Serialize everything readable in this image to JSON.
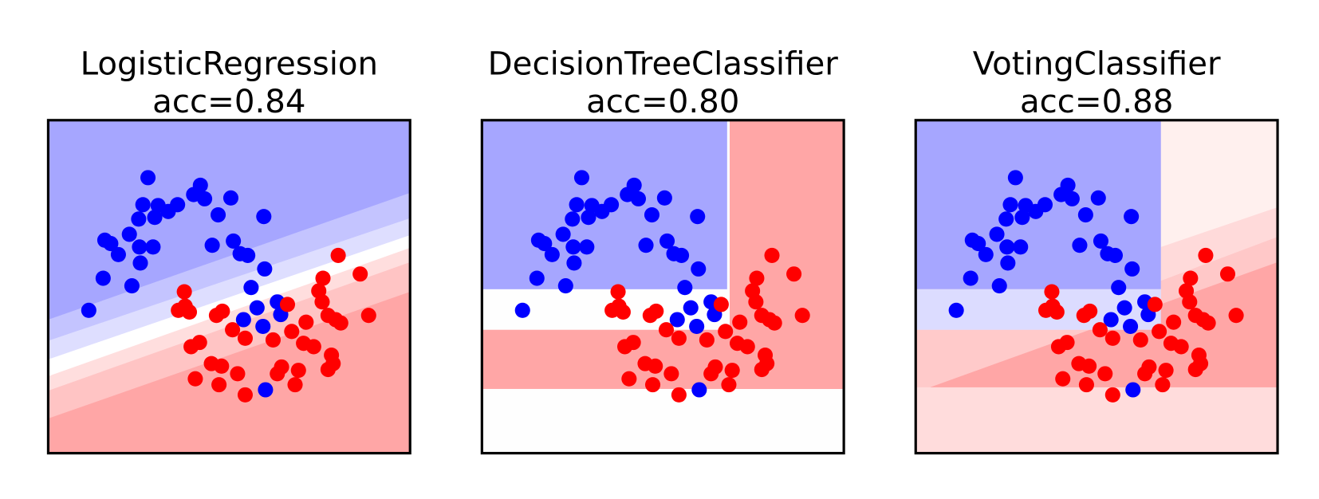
{
  "chart_data": [
    {
      "type": "scatter",
      "title": "LogisticRegression",
      "subtitle": "acc=0.84",
      "xlim": [
        0,
        4.28
      ],
      "ylim": [
        0,
        3.94
      ],
      "series": [
        {
          "color": "#0000ff",
          "x": [
            1.18,
            1.8,
            1.72,
            1.85,
            1.12,
            1.3,
            1.53,
            2.16,
            1.42,
            1.26,
            1.07,
            2.01,
            2.55,
            0.67,
            0.74,
            0.96,
            1.08,
            1.24,
            1.94,
            2.19,
            2.27,
            2.36,
            0.83,
            1.09,
            2.56,
            0.65,
            0.99,
            2.4,
            2.71,
            2.47,
            2.75,
            0.48,
            2.31,
            2.54,
            2.57
          ],
          "values": [
            3.26,
            3.17,
            3.06,
            3.01,
            2.94,
            2.93,
            2.94,
            3.02,
            2.86,
            2.79,
            2.77,
            2.82,
            2.8,
            2.52,
            2.48,
            2.59,
            2.44,
            2.44,
            2.46,
            2.51,
            2.36,
            2.34,
            2.35,
            2.25,
            2.18,
            2.07,
            1.98,
            1.96,
            1.79,
            1.72,
            1.64,
            1.69,
            1.58,
            1.5,
            0.75
          ]
        },
        {
          "color": "#ff0000",
          "x": [
            3.43,
            3.69,
            3.25,
            1.61,
            3.2,
            3.24,
            1.62,
            1.54,
            1.67,
            2.06,
            1.99,
            2.83,
            3.31,
            3.4,
            3.46,
            3.79,
            3.05,
            2.88,
            2.18,
            1.69,
            1.79,
            2.33,
            2.66,
            3.02,
            3.14,
            3.35,
            1.93,
            2.05,
            2.24,
            2.76,
            2.71,
            2.96,
            3.37,
            3.31,
            1.74,
            2.02,
            2.92,
            2.33
          ],
          "values": [
            2.34,
            2.12,
            2.07,
            1.91,
            1.92,
            1.79,
            1.74,
            1.69,
            1.67,
            1.68,
            1.63,
            1.76,
            1.63,
            1.58,
            1.54,
            1.63,
            1.55,
            1.44,
            1.46,
            1.26,
            1.31,
            1.36,
            1.34,
            1.3,
            1.26,
            1.16,
            1.06,
            1.03,
            0.94,
            1.02,
            0.94,
            0.98,
            1.06,
            0.99,
            0.88,
            0.81,
            0.81,
            0.69
          ]
        }
      ]
    },
    {
      "type": "scatter",
      "title": "DecisionTreeClassifier",
      "subtitle": "acc=0.80",
      "xlim": [
        0,
        4.28
      ],
      "ylim": [
        0,
        3.94
      ],
      "series": [
        {
          "color": "#0000ff",
          "x": [
            1.18,
            1.8,
            1.72,
            1.85,
            1.12,
            1.3,
            1.53,
            2.16,
            1.42,
            1.26,
            1.07,
            2.01,
            2.55,
            0.67,
            0.74,
            0.96,
            1.08,
            1.24,
            1.94,
            2.19,
            2.27,
            2.36,
            0.83,
            1.09,
            2.56,
            0.65,
            0.99,
            2.4,
            2.71,
            2.47,
            2.75,
            0.48,
            2.31,
            2.54,
            2.57
          ],
          "values": [
            3.26,
            3.17,
            3.06,
            3.01,
            2.94,
            2.93,
            2.94,
            3.02,
            2.86,
            2.79,
            2.77,
            2.82,
            2.8,
            2.52,
            2.48,
            2.59,
            2.44,
            2.44,
            2.46,
            2.51,
            2.36,
            2.34,
            2.35,
            2.25,
            2.18,
            2.07,
            1.98,
            1.96,
            1.79,
            1.72,
            1.64,
            1.69,
            1.58,
            1.5,
            0.75
          ]
        },
        {
          "color": "#ff0000",
          "x": [
            3.43,
            3.69,
            3.25,
            1.61,
            3.2,
            3.24,
            1.62,
            1.54,
            1.67,
            2.06,
            1.99,
            2.83,
            3.31,
            3.4,
            3.46,
            3.79,
            3.05,
            2.88,
            2.18,
            1.69,
            1.79,
            2.33,
            2.66,
            3.02,
            3.14,
            3.35,
            1.93,
            2.05,
            2.24,
            2.76,
            2.71,
            2.96,
            3.37,
            3.31,
            1.74,
            2.02,
            2.92,
            2.33
          ],
          "values": [
            2.34,
            2.12,
            2.07,
            1.91,
            1.92,
            1.79,
            1.74,
            1.69,
            1.67,
            1.68,
            1.63,
            1.76,
            1.63,
            1.58,
            1.54,
            1.63,
            1.55,
            1.44,
            1.46,
            1.26,
            1.31,
            1.36,
            1.34,
            1.3,
            1.26,
            1.16,
            1.06,
            1.03,
            0.94,
            1.02,
            0.94,
            0.98,
            1.06,
            0.99,
            0.88,
            0.81,
            0.81,
            0.69
          ]
        }
      ]
    },
    {
      "type": "scatter",
      "title": "VotingClassifier",
      "subtitle": "acc=0.88",
      "xlim": [
        0,
        4.28
      ],
      "ylim": [
        0,
        3.94
      ],
      "series": [
        {
          "color": "#0000ff",
          "x": [
            1.18,
            1.8,
            1.72,
            1.85,
            1.12,
            1.3,
            1.53,
            2.16,
            1.42,
            1.26,
            1.07,
            2.01,
            2.55,
            0.67,
            0.74,
            0.96,
            1.08,
            1.24,
            1.94,
            2.19,
            2.27,
            2.36,
            0.83,
            1.09,
            2.56,
            0.65,
            0.99,
            2.4,
            2.71,
            2.47,
            2.75,
            0.48,
            2.31,
            2.54,
            2.57
          ],
          "values": [
            3.26,
            3.17,
            3.06,
            3.01,
            2.94,
            2.93,
            2.94,
            3.02,
            2.86,
            2.79,
            2.77,
            2.82,
            2.8,
            2.52,
            2.48,
            2.59,
            2.44,
            2.44,
            2.46,
            2.51,
            2.36,
            2.34,
            2.35,
            2.25,
            2.18,
            2.07,
            1.98,
            1.96,
            1.79,
            1.72,
            1.64,
            1.69,
            1.58,
            1.5,
            0.75
          ]
        },
        {
          "color": "#ff0000",
          "x": [
            3.43,
            3.69,
            3.25,
            1.61,
            3.2,
            3.24,
            1.62,
            1.54,
            1.67,
            2.06,
            1.99,
            2.83,
            3.31,
            3.4,
            3.46,
            3.79,
            3.05,
            2.88,
            2.18,
            1.69,
            1.79,
            2.33,
            2.66,
            3.02,
            3.14,
            3.35,
            1.93,
            2.05,
            2.24,
            2.76,
            2.71,
            2.96,
            3.37,
            3.31,
            1.74,
            2.02,
            2.92,
            2.33
          ],
          "values": [
            2.34,
            2.12,
            2.07,
            1.91,
            1.92,
            1.79,
            1.74,
            1.69,
            1.67,
            1.68,
            1.63,
            1.76,
            1.63,
            1.58,
            1.54,
            1.63,
            1.55,
            1.44,
            1.46,
            1.26,
            1.31,
            1.36,
            1.34,
            1.3,
            1.26,
            1.16,
            1.06,
            1.03,
            0.94,
            1.02,
            0.94,
            0.98,
            1.06,
            0.99,
            0.88,
            0.81,
            0.81,
            0.69
          ]
        }
      ]
    }
  ]
}
